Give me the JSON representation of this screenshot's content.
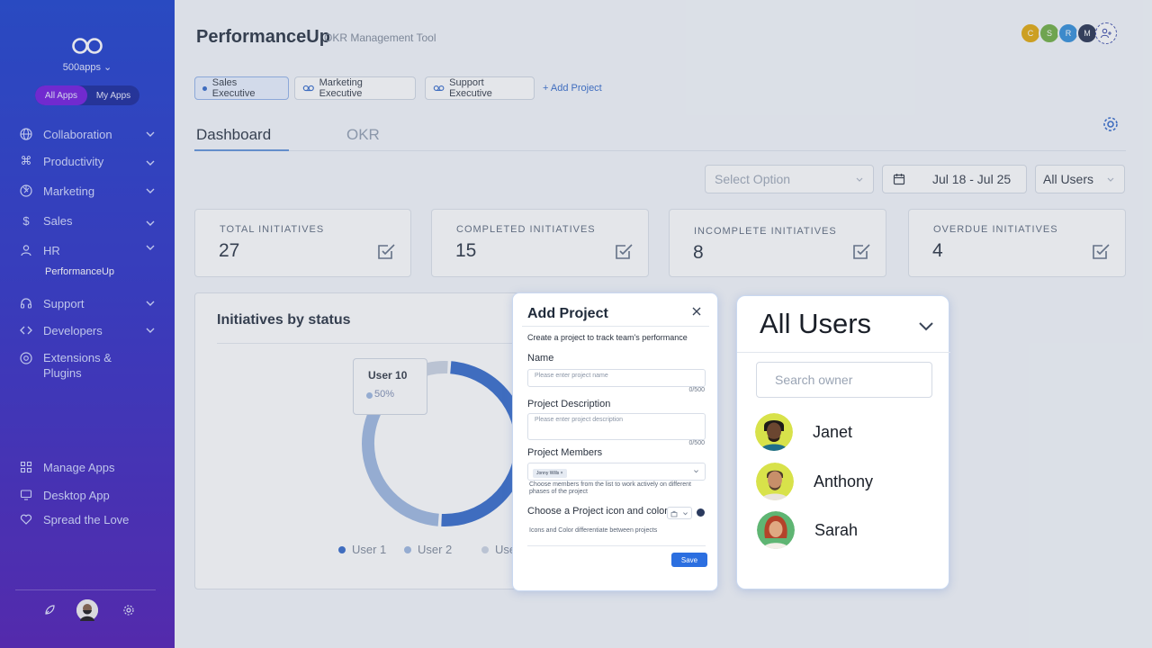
{
  "sidebar": {
    "org_name": "500apps",
    "switch": {
      "all": "All Apps",
      "mine": "My Apps"
    },
    "items": [
      {
        "label": "Collaboration",
        "icon": "globe-icon"
      },
      {
        "label": "Productivity",
        "icon": "command-icon"
      },
      {
        "label": "Marketing",
        "icon": "aperture-icon"
      },
      {
        "label": "Sales",
        "icon": "dollar-icon"
      },
      {
        "label": "HR",
        "icon": "user-icon"
      },
      {
        "label": "Support",
        "icon": "headphones-icon"
      },
      {
        "label": "Developers",
        "icon": "code-icon"
      },
      {
        "label": "Extensions & Plugins",
        "icon": "chrome-icon"
      }
    ],
    "sub_item": "PerformanceUp",
    "bottom": [
      {
        "label": "Manage Apps",
        "icon": "grid-icon"
      },
      {
        "label": "Desktop App",
        "icon": "monitor-icon"
      },
      {
        "label": "Spread the Love",
        "icon": "heart-icon"
      }
    ]
  },
  "header": {
    "title": "PerformanceUp",
    "subtitle": "OKR Management Tool",
    "avatars": [
      {
        "initial": "C",
        "color": "#e0a400"
      },
      {
        "initial": "S",
        "color": "#6aab3a"
      },
      {
        "initial": "R",
        "color": "#2a8ad8"
      },
      {
        "initial": "M",
        "color": "#1e2a4a"
      }
    ]
  },
  "projects": {
    "tabs": [
      "Sales Executive",
      "Marketing Executive",
      "Support Executive"
    ],
    "add_label": "+ Add Project"
  },
  "tabs": {
    "dashboard": "Dashboard",
    "okr": "OKR"
  },
  "filters": {
    "select_placeholder": "Select Option",
    "date_range": "Jul 18 - Jul 25",
    "users": "All Users"
  },
  "kpis": [
    {
      "label": "TOTAL INITIATIVES",
      "value": "27"
    },
    {
      "label": "COMPLETED INITIATIVES",
      "value": "15"
    },
    {
      "label": "INCOMPLETE INITIATIVES",
      "value": "8"
    },
    {
      "label": "OVERDUE INITIATIVES",
      "value": "4"
    }
  ],
  "status_card": {
    "title": "Initiatives by status",
    "tooltip": {
      "name": "User 10",
      "value": "50%"
    }
  },
  "chart_data": {
    "type": "pie",
    "title": "Initiatives by status",
    "donut": true,
    "series": [
      {
        "name": "User 1",
        "value": 50,
        "color": "#2c64c8"
      },
      {
        "name": "User 2",
        "value": 42,
        "color": "#9ab5df"
      },
      {
        "name": "User 3",
        "value": 8,
        "color": "#c9d3e2"
      }
    ],
    "legend_position": "bottom"
  },
  "add_project": {
    "title": "Add Project",
    "description": "Create a project to track team's performance",
    "name_label": "Name",
    "name_placeholder": "Please enter project name",
    "name_count": "0/500",
    "desc_label": "Project Description",
    "desc_placeholder": "Please enter project description",
    "desc_count": "0/500",
    "members_label": "Project Members",
    "member_chip": "Jonny Wills  ×",
    "members_help": "Choose members from the list to work actively on different phases of the project",
    "icon_color_label": "Choose a Project icon and color",
    "icon_color_help": "Icons and Color differentiate between projects",
    "save_label": "Save"
  },
  "users_panel": {
    "title": "All Users",
    "search_placeholder": "Search owner",
    "users": [
      {
        "name": "Janet",
        "bg": "#d8e24a",
        "skin": "#6b4630"
      },
      {
        "name": "Anthony",
        "bg": "#d8e24a",
        "skin": "#c78f6a"
      },
      {
        "name": "Sarah",
        "bg": "#5fb573",
        "skin": "#e0a982"
      }
    ]
  }
}
